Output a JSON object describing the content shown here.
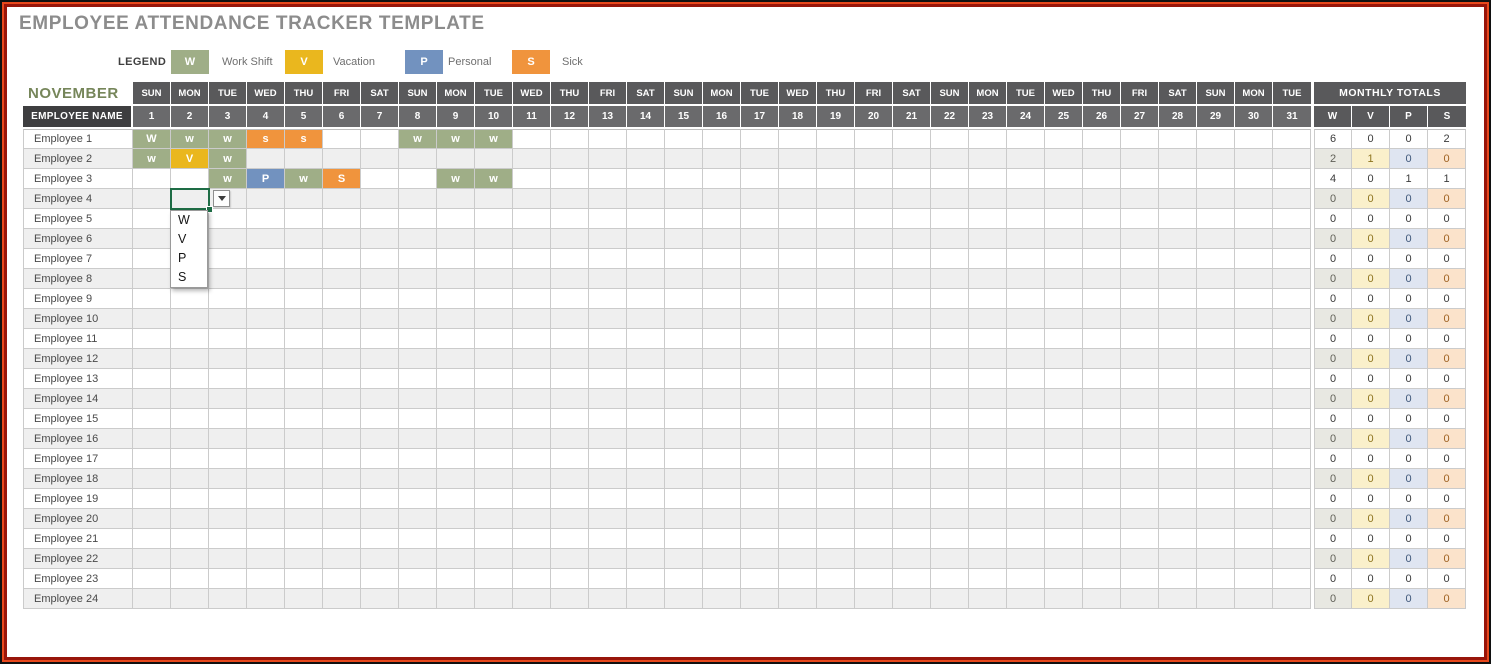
{
  "title": "EMPLOYEE ATTENDANCE TRACKER TEMPLATE",
  "legend": {
    "label": "LEGEND",
    "items": [
      {
        "code": "W",
        "name": "Work Shift"
      },
      {
        "code": "V",
        "name": "Vacation"
      },
      {
        "code": "P",
        "name": "Personal"
      },
      {
        "code": "S",
        "name": "Sick"
      }
    ]
  },
  "colors": {
    "marks": {
      "W": "#9fae87",
      "V": "#eab71e",
      "P": "#7292bf",
      "S": "#f0943d"
    },
    "totals_tints": [
      "#e8e8e2",
      "#faf0cb",
      "#dfe5f1",
      "#fbe3cb"
    ],
    "totals_tint_text": [
      "#5f5f57",
      "#8d741f",
      "#41597b",
      "#9f6222"
    ],
    "selection": "#1e6c45"
  },
  "sheet": {
    "month": "NOVEMBER",
    "employee_header": "EMPLOYEE NAME",
    "totals_header": "MONTHLY TOTALS",
    "totals_columns": [
      "W",
      "V",
      "P",
      "S"
    ],
    "day_names": [
      "SUN",
      "MON",
      "TUE",
      "WED",
      "THU",
      "FRI",
      "SAT",
      "SUN",
      "MON",
      "TUE",
      "WED",
      "THU",
      "FRI",
      "SAT",
      "SUN",
      "MON",
      "TUE",
      "WED",
      "THU",
      "FRI",
      "SAT",
      "SUN",
      "MON",
      "TUE",
      "WED",
      "THU",
      "FRI",
      "SAT",
      "SUN",
      "MON",
      "TUE"
    ],
    "dates": [
      "1",
      "2",
      "3",
      "4",
      "5",
      "6",
      "7",
      "8",
      "9",
      "10",
      "11",
      "12",
      "13",
      "14",
      "15",
      "16",
      "17",
      "18",
      "19",
      "20",
      "21",
      "22",
      "23",
      "24",
      "25",
      "26",
      "27",
      "28",
      "29",
      "30",
      "31"
    ]
  },
  "dropdown": {
    "options": [
      "W",
      "V",
      "P",
      "S"
    ],
    "anchor": {
      "employee": "Employee 4",
      "day": "2"
    }
  },
  "employees": [
    {
      "name": "Employee 1",
      "marks": {
        "1": [
          "W",
          "W"
        ],
        "2": [
          "W",
          "w"
        ],
        "3": [
          "W",
          "w"
        ],
        "4": [
          "S",
          "s"
        ],
        "5": [
          "S",
          "s"
        ],
        "8": [
          "W",
          "w"
        ],
        "9": [
          "W",
          "w"
        ],
        "10": [
          "W",
          "w"
        ]
      },
      "totals": [
        "6",
        "0",
        "0",
        "2"
      ]
    },
    {
      "name": "Employee 2",
      "marks": {
        "1": [
          "W",
          "w"
        ],
        "2": [
          "V",
          "V"
        ],
        "3": [
          "W",
          "w"
        ]
      },
      "totals": [
        "2",
        "1",
        "0",
        "0"
      ]
    },
    {
      "name": "Employee 3",
      "marks": {
        "3": [
          "W",
          "w"
        ],
        "4": [
          "P",
          "P"
        ],
        "5": [
          "W",
          "w"
        ],
        "6": [
          "S",
          "S"
        ],
        "9": [
          "W",
          "w"
        ],
        "10": [
          "W",
          "w"
        ]
      },
      "totals": [
        "4",
        "0",
        "1",
        "1"
      ]
    },
    {
      "name": "Employee 4",
      "marks": {},
      "totals": [
        "0",
        "0",
        "0",
        "0"
      ]
    },
    {
      "name": "Employee 5",
      "marks": {},
      "totals": [
        "0",
        "0",
        "0",
        "0"
      ]
    },
    {
      "name": "Employee 6",
      "marks": {},
      "totals": [
        "0",
        "0",
        "0",
        "0"
      ]
    },
    {
      "name": "Employee 7",
      "marks": {},
      "totals": [
        "0",
        "0",
        "0",
        "0"
      ]
    },
    {
      "name": "Employee 8",
      "marks": {},
      "totals": [
        "0",
        "0",
        "0",
        "0"
      ]
    },
    {
      "name": "Employee 9",
      "marks": {},
      "totals": [
        "0",
        "0",
        "0",
        "0"
      ]
    },
    {
      "name": "Employee 10",
      "marks": {},
      "totals": [
        "0",
        "0",
        "0",
        "0"
      ]
    },
    {
      "name": "Employee 11",
      "marks": {},
      "totals": [
        "0",
        "0",
        "0",
        "0"
      ]
    },
    {
      "name": "Employee 12",
      "marks": {},
      "totals": [
        "0",
        "0",
        "0",
        "0"
      ]
    },
    {
      "name": "Employee 13",
      "marks": {},
      "totals": [
        "0",
        "0",
        "0",
        "0"
      ]
    },
    {
      "name": "Employee 14",
      "marks": {},
      "totals": [
        "0",
        "0",
        "0",
        "0"
      ]
    },
    {
      "name": "Employee 15",
      "marks": {},
      "totals": [
        "0",
        "0",
        "0",
        "0"
      ]
    },
    {
      "name": "Employee 16",
      "marks": {},
      "totals": [
        "0",
        "0",
        "0",
        "0"
      ]
    },
    {
      "name": "Employee 17",
      "marks": {},
      "totals": [
        "0",
        "0",
        "0",
        "0"
      ]
    },
    {
      "name": "Employee 18",
      "marks": {},
      "totals": [
        "0",
        "0",
        "0",
        "0"
      ]
    },
    {
      "name": "Employee 19",
      "marks": {},
      "totals": [
        "0",
        "0",
        "0",
        "0"
      ]
    },
    {
      "name": "Employee 20",
      "marks": {},
      "totals": [
        "0",
        "0",
        "0",
        "0"
      ]
    },
    {
      "name": "Employee 21",
      "marks": {},
      "totals": [
        "0",
        "0",
        "0",
        "0"
      ]
    },
    {
      "name": "Employee 22",
      "marks": {},
      "totals": [
        "0",
        "0",
        "0",
        "0"
      ]
    },
    {
      "name": "Employee 23",
      "marks": {},
      "totals": [
        "0",
        "0",
        "0",
        "0"
      ]
    },
    {
      "name": "Employee 24",
      "marks": {},
      "totals": [
        "0",
        "0",
        "0",
        "0"
      ]
    }
  ]
}
